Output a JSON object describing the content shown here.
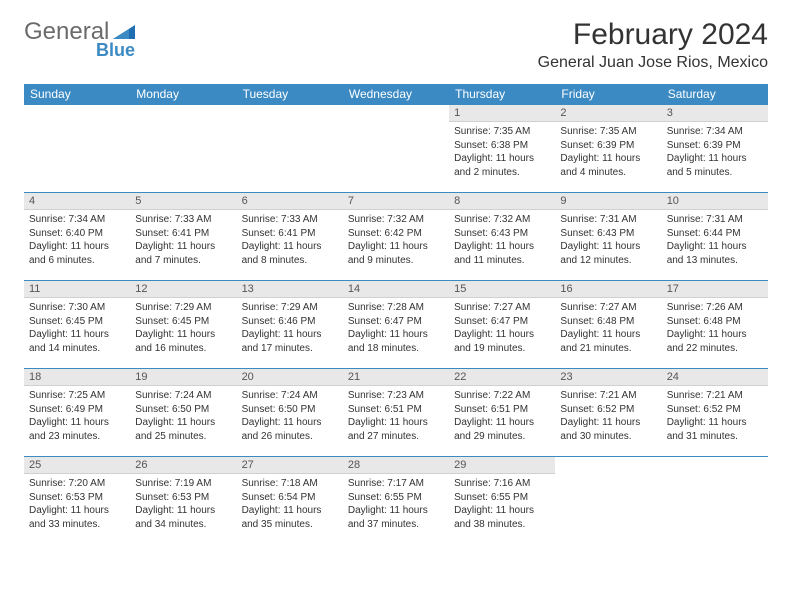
{
  "brand": {
    "name1": "General",
    "name2": "Blue"
  },
  "colors": {
    "header_bg": "#3b8ac4",
    "header_text": "#ffffff",
    "daynum_bg": "#e8e8e8",
    "border": "#3b8ac4",
    "body_text": "#333333",
    "logo_gray": "#6b6b6b",
    "logo_blue": "#3b8ac4"
  },
  "title": "February 2024",
  "location": "General Juan Jose Rios, Mexico",
  "day_headers": [
    "Sunday",
    "Monday",
    "Tuesday",
    "Wednesday",
    "Thursday",
    "Friday",
    "Saturday"
  ],
  "weeks": [
    [
      {
        "n": "",
        "sr": "",
        "ss": "",
        "dl": ""
      },
      {
        "n": "",
        "sr": "",
        "ss": "",
        "dl": ""
      },
      {
        "n": "",
        "sr": "",
        "ss": "",
        "dl": ""
      },
      {
        "n": "",
        "sr": "",
        "ss": "",
        "dl": ""
      },
      {
        "n": "1",
        "sr": "Sunrise: 7:35 AM",
        "ss": "Sunset: 6:38 PM",
        "dl": "Daylight: 11 hours and 2 minutes."
      },
      {
        "n": "2",
        "sr": "Sunrise: 7:35 AM",
        "ss": "Sunset: 6:39 PM",
        "dl": "Daylight: 11 hours and 4 minutes."
      },
      {
        "n": "3",
        "sr": "Sunrise: 7:34 AM",
        "ss": "Sunset: 6:39 PM",
        "dl": "Daylight: 11 hours and 5 minutes."
      }
    ],
    [
      {
        "n": "4",
        "sr": "Sunrise: 7:34 AM",
        "ss": "Sunset: 6:40 PM",
        "dl": "Daylight: 11 hours and 6 minutes."
      },
      {
        "n": "5",
        "sr": "Sunrise: 7:33 AM",
        "ss": "Sunset: 6:41 PM",
        "dl": "Daylight: 11 hours and 7 minutes."
      },
      {
        "n": "6",
        "sr": "Sunrise: 7:33 AM",
        "ss": "Sunset: 6:41 PM",
        "dl": "Daylight: 11 hours and 8 minutes."
      },
      {
        "n": "7",
        "sr": "Sunrise: 7:32 AM",
        "ss": "Sunset: 6:42 PM",
        "dl": "Daylight: 11 hours and 9 minutes."
      },
      {
        "n": "8",
        "sr": "Sunrise: 7:32 AM",
        "ss": "Sunset: 6:43 PM",
        "dl": "Daylight: 11 hours and 11 minutes."
      },
      {
        "n": "9",
        "sr": "Sunrise: 7:31 AM",
        "ss": "Sunset: 6:43 PM",
        "dl": "Daylight: 11 hours and 12 minutes."
      },
      {
        "n": "10",
        "sr": "Sunrise: 7:31 AM",
        "ss": "Sunset: 6:44 PM",
        "dl": "Daylight: 11 hours and 13 minutes."
      }
    ],
    [
      {
        "n": "11",
        "sr": "Sunrise: 7:30 AM",
        "ss": "Sunset: 6:45 PM",
        "dl": "Daylight: 11 hours and 14 minutes."
      },
      {
        "n": "12",
        "sr": "Sunrise: 7:29 AM",
        "ss": "Sunset: 6:45 PM",
        "dl": "Daylight: 11 hours and 16 minutes."
      },
      {
        "n": "13",
        "sr": "Sunrise: 7:29 AM",
        "ss": "Sunset: 6:46 PM",
        "dl": "Daylight: 11 hours and 17 minutes."
      },
      {
        "n": "14",
        "sr": "Sunrise: 7:28 AM",
        "ss": "Sunset: 6:47 PM",
        "dl": "Daylight: 11 hours and 18 minutes."
      },
      {
        "n": "15",
        "sr": "Sunrise: 7:27 AM",
        "ss": "Sunset: 6:47 PM",
        "dl": "Daylight: 11 hours and 19 minutes."
      },
      {
        "n": "16",
        "sr": "Sunrise: 7:27 AM",
        "ss": "Sunset: 6:48 PM",
        "dl": "Daylight: 11 hours and 21 minutes."
      },
      {
        "n": "17",
        "sr": "Sunrise: 7:26 AM",
        "ss": "Sunset: 6:48 PM",
        "dl": "Daylight: 11 hours and 22 minutes."
      }
    ],
    [
      {
        "n": "18",
        "sr": "Sunrise: 7:25 AM",
        "ss": "Sunset: 6:49 PM",
        "dl": "Daylight: 11 hours and 23 minutes."
      },
      {
        "n": "19",
        "sr": "Sunrise: 7:24 AM",
        "ss": "Sunset: 6:50 PM",
        "dl": "Daylight: 11 hours and 25 minutes."
      },
      {
        "n": "20",
        "sr": "Sunrise: 7:24 AM",
        "ss": "Sunset: 6:50 PM",
        "dl": "Daylight: 11 hours and 26 minutes."
      },
      {
        "n": "21",
        "sr": "Sunrise: 7:23 AM",
        "ss": "Sunset: 6:51 PM",
        "dl": "Daylight: 11 hours and 27 minutes."
      },
      {
        "n": "22",
        "sr": "Sunrise: 7:22 AM",
        "ss": "Sunset: 6:51 PM",
        "dl": "Daylight: 11 hours and 29 minutes."
      },
      {
        "n": "23",
        "sr": "Sunrise: 7:21 AM",
        "ss": "Sunset: 6:52 PM",
        "dl": "Daylight: 11 hours and 30 minutes."
      },
      {
        "n": "24",
        "sr": "Sunrise: 7:21 AM",
        "ss": "Sunset: 6:52 PM",
        "dl": "Daylight: 11 hours and 31 minutes."
      }
    ],
    [
      {
        "n": "25",
        "sr": "Sunrise: 7:20 AM",
        "ss": "Sunset: 6:53 PM",
        "dl": "Daylight: 11 hours and 33 minutes."
      },
      {
        "n": "26",
        "sr": "Sunrise: 7:19 AM",
        "ss": "Sunset: 6:53 PM",
        "dl": "Daylight: 11 hours and 34 minutes."
      },
      {
        "n": "27",
        "sr": "Sunrise: 7:18 AM",
        "ss": "Sunset: 6:54 PM",
        "dl": "Daylight: 11 hours and 35 minutes."
      },
      {
        "n": "28",
        "sr": "Sunrise: 7:17 AM",
        "ss": "Sunset: 6:55 PM",
        "dl": "Daylight: 11 hours and 37 minutes."
      },
      {
        "n": "29",
        "sr": "Sunrise: 7:16 AM",
        "ss": "Sunset: 6:55 PM",
        "dl": "Daylight: 11 hours and 38 minutes."
      },
      {
        "n": "",
        "sr": "",
        "ss": "",
        "dl": ""
      },
      {
        "n": "",
        "sr": "",
        "ss": "",
        "dl": ""
      }
    ]
  ]
}
